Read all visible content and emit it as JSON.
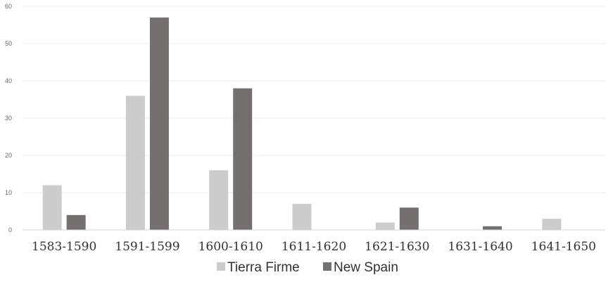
{
  "chart_data": {
    "type": "bar",
    "categories": [
      "1583-1590",
      "1591-1599",
      "1600-1610",
      "1611-1620",
      "1621-1630",
      "1631-1640",
      "1641-1650"
    ],
    "series": [
      {
        "name": "Tierra Firme",
        "color": "#cccccc",
        "values": [
          12,
          36,
          16,
          7,
          2,
          0,
          3
        ]
      },
      {
        "name": "New Spain",
        "color": "#757070",
        "values": [
          4,
          57,
          38,
          0,
          6,
          1,
          0
        ]
      }
    ],
    "ylim": [
      0,
      60
    ],
    "yticks": [
      0,
      10,
      20,
      30,
      40,
      50,
      60
    ],
    "grid": true,
    "legend_position": "bottom",
    "title": "",
    "xlabel": "",
    "ylabel": ""
  }
}
